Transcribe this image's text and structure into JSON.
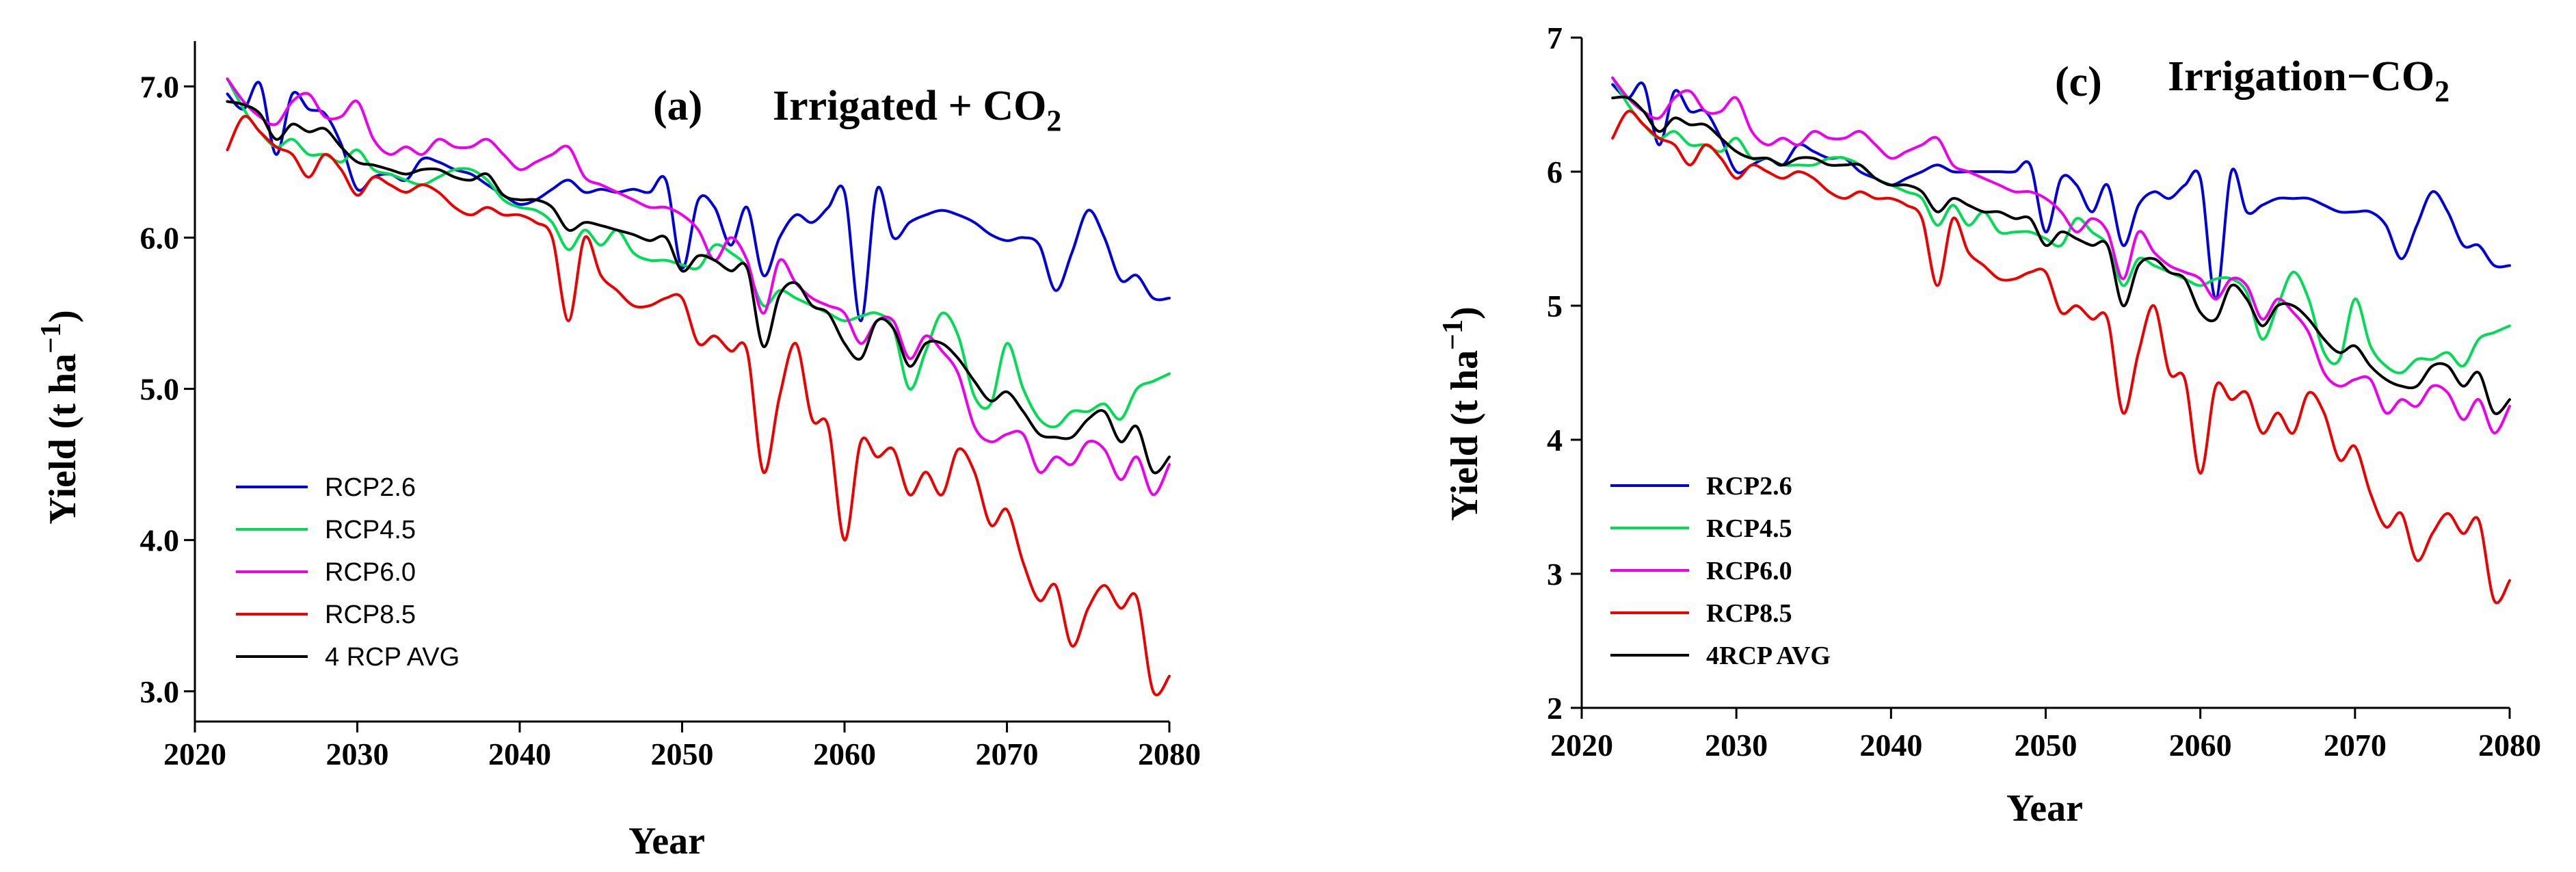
{
  "chart_data": [
    {
      "type": "line",
      "panel_label": "(a)",
      "title_main": "Irrigated + CO",
      "title_sub": "2",
      "xlabel": "Year",
      "ylabel_main": "Yield (t ha",
      "ylabel_sup": "−1",
      "ylabel_close": ")",
      "xlim": [
        2020,
        2080
      ],
      "ylim": [
        2.8,
        7.3
      ],
      "xticks": [
        2020,
        2030,
        2040,
        2050,
        2060,
        2070,
        2080
      ],
      "xtick_labels": [
        "2020",
        "2030",
        "2040",
        "2050",
        "2060",
        "2070",
        "2080"
      ],
      "yticks": [
        3,
        4,
        5,
        6,
        7
      ],
      "ytick_labels": [
        "3.0",
        "4.0",
        "5.0",
        "6.0",
        "7.0"
      ],
      "legend_position": "bottom-left",
      "x": [
        2022,
        2023,
        2024,
        2025,
        2026,
        2027,
        2028,
        2029,
        2030,
        2031,
        2032,
        2033,
        2034,
        2035,
        2036,
        2037,
        2038,
        2039,
        2040,
        2041,
        2042,
        2043,
        2044,
        2045,
        2046,
        2047,
        2048,
        2049,
        2050,
        2051,
        2052,
        2053,
        2054,
        2055,
        2056,
        2057,
        2058,
        2059,
        2060,
        2061,
        2062,
        2063,
        2064,
        2065,
        2066,
        2067,
        2068,
        2069,
        2070,
        2071,
        2072,
        2073,
        2074,
        2075,
        2076,
        2077,
        2078,
        2079,
        2080
      ],
      "series": [
        {
          "name": "RCP2.6",
          "color": "#0000dd",
          "values": [
            6.95,
            6.85,
            7.02,
            6.55,
            6.95,
            6.85,
            6.82,
            6.62,
            6.32,
            6.4,
            6.42,
            6.38,
            6.52,
            6.5,
            6.45,
            6.42,
            6.35,
            6.28,
            6.22,
            6.25,
            6.32,
            6.38,
            6.3,
            6.32,
            6.3,
            6.32,
            6.3,
            6.38,
            5.8,
            6.25,
            6.2,
            5.95,
            6.2,
            5.75,
            6.0,
            6.15,
            6.1,
            6.2,
            6.3,
            5.45,
            6.32,
            6.0,
            6.1,
            6.15,
            6.18,
            6.15,
            6.1,
            6.02,
            5.98,
            6.0,
            5.95,
            5.65,
            5.9,
            6.18,
            6.0,
            5.72,
            5.75,
            5.6,
            5.6
          ]
        },
        {
          "name": "RCP4.5",
          "color": "#00dd55",
          "values": [
            7.05,
            6.85,
            6.7,
            6.6,
            6.65,
            6.55,
            6.55,
            6.5,
            6.58,
            6.45,
            6.42,
            6.38,
            6.35,
            6.4,
            6.45,
            6.45,
            6.38,
            6.25,
            6.2,
            6.18,
            6.1,
            5.92,
            6.05,
            5.95,
            6.05,
            5.9,
            5.85,
            5.85,
            5.82,
            5.8,
            5.95,
            5.9,
            5.8,
            5.55,
            5.65,
            5.6,
            5.55,
            5.5,
            5.45,
            5.48,
            5.5,
            5.4,
            5.0,
            5.25,
            5.5,
            5.35,
            4.95,
            4.9,
            5.3,
            5.0,
            4.8,
            4.75,
            4.85,
            4.85,
            4.9,
            4.8,
            5.0,
            5.05,
            5.1
          ]
        },
        {
          "name": "RCP6.0",
          "color": "#ee00ee",
          "values": [
            7.05,
            6.9,
            6.8,
            6.75,
            6.9,
            6.95,
            6.8,
            6.8,
            6.9,
            6.65,
            6.55,
            6.6,
            6.55,
            6.65,
            6.6,
            6.6,
            6.65,
            6.55,
            6.45,
            6.5,
            6.55,
            6.6,
            6.4,
            6.35,
            6.3,
            6.25,
            6.2,
            6.2,
            6.15,
            6.05,
            5.85,
            6.0,
            5.85,
            5.5,
            5.85,
            5.7,
            5.6,
            5.55,
            5.5,
            5.3,
            5.45,
            5.45,
            5.2,
            5.35,
            5.25,
            5.1,
            4.75,
            4.65,
            4.7,
            4.7,
            4.45,
            4.55,
            4.5,
            4.65,
            4.6,
            4.4,
            4.55,
            4.3,
            4.5
          ]
        },
        {
          "name": "RCP8.5",
          "color": "#ee0000",
          "values": [
            6.58,
            6.8,
            6.7,
            6.6,
            6.55,
            6.4,
            6.55,
            6.45,
            6.28,
            6.4,
            6.35,
            6.3,
            6.35,
            6.3,
            6.2,
            6.15,
            6.2,
            6.15,
            6.15,
            6.1,
            6.0,
            5.45,
            6.0,
            5.75,
            5.65,
            5.55,
            5.55,
            5.6,
            5.6,
            5.3,
            5.35,
            5.25,
            5.25,
            4.45,
            4.95,
            5.3,
            4.8,
            4.75,
            4.0,
            4.65,
            4.55,
            4.6,
            4.3,
            4.45,
            4.3,
            4.6,
            4.45,
            4.1,
            4.2,
            3.85,
            3.6,
            3.7,
            3.3,
            3.55,
            3.7,
            3.55,
            3.62,
            3.0,
            3.1
          ]
        },
        {
          "name": "4 RCP AVG",
          "color": "#000000",
          "values": [
            6.9,
            6.88,
            6.82,
            6.65,
            6.75,
            6.7,
            6.72,
            6.6,
            6.5,
            6.48,
            6.45,
            6.42,
            6.45,
            6.45,
            6.4,
            6.38,
            6.42,
            6.28,
            6.25,
            6.25,
            6.2,
            6.05,
            6.1,
            6.08,
            6.05,
            6.02,
            5.98,
            6.0,
            5.78,
            5.88,
            5.85,
            5.78,
            5.8,
            5.28,
            5.62,
            5.7,
            5.55,
            5.5,
            5.3,
            5.2,
            5.45,
            5.4,
            5.15,
            5.3,
            5.3,
            5.2,
            5.05,
            4.92,
            4.98,
            4.85,
            4.7,
            4.68,
            4.68,
            4.8,
            4.85,
            4.65,
            4.75,
            4.45,
            4.55
          ]
        }
      ]
    },
    {
      "type": "line",
      "panel_label": "(c)",
      "title_main": "Irrigation−CO",
      "title_sub": "2",
      "xlabel": "Year",
      "ylabel_main": "Yield (t ha",
      "ylabel_sup": "−1",
      "ylabel_close": ")",
      "xlim": [
        2020,
        2080
      ],
      "ylim": [
        2,
        7
      ],
      "xticks": [
        2020,
        2030,
        2040,
        2050,
        2060,
        2070,
        2080
      ],
      "xtick_labels": [
        "2020",
        "2030",
        "2040",
        "2050",
        "2060",
        "2070",
        "2080"
      ],
      "yticks": [
        2,
        3,
        4,
        5,
        6,
        7
      ],
      "ytick_labels": [
        "2",
        "3",
        "4",
        "5",
        "6",
        "7"
      ],
      "legend_position": "bottom-left",
      "x": [
        2022,
        2023,
        2024,
        2025,
        2026,
        2027,
        2028,
        2029,
        2030,
        2031,
        2032,
        2033,
        2034,
        2035,
        2036,
        2037,
        2038,
        2039,
        2040,
        2041,
        2042,
        2043,
        2044,
        2045,
        2046,
        2047,
        2048,
        2049,
        2050,
        2051,
        2052,
        2053,
        2054,
        2055,
        2056,
        2057,
        2058,
        2059,
        2060,
        2061,
        2062,
        2063,
        2064,
        2065,
        2066,
        2067,
        2068,
        2069,
        2070,
        2071,
        2072,
        2073,
        2074,
        2075,
        2076,
        2077,
        2078,
        2079,
        2080
      ],
      "series": [
        {
          "name": "RCP2.6",
          "color": "#0000dd",
          "values": [
            6.65,
            6.55,
            6.65,
            6.2,
            6.6,
            6.45,
            6.45,
            6.25,
            6.0,
            6.05,
            6.1,
            6.05,
            6.2,
            6.15,
            6.1,
            6.1,
            6.0,
            5.95,
            5.9,
            5.95,
            6.0,
            6.05,
            6.0,
            6.0,
            6.0,
            6.0,
            6.0,
            6.05,
            5.55,
            5.95,
            5.9,
            5.7,
            5.9,
            5.45,
            5.75,
            5.85,
            5.8,
            5.9,
            5.95,
            5.05,
            6.0,
            5.7,
            5.75,
            5.8,
            5.8,
            5.8,
            5.75,
            5.7,
            5.7,
            5.7,
            5.6,
            5.35,
            5.6,
            5.85,
            5.7,
            5.45,
            5.45,
            5.3,
            5.3
          ]
        },
        {
          "name": "RCP4.5",
          "color": "#00dd55",
          "values": [
            6.7,
            6.5,
            6.35,
            6.25,
            6.3,
            6.2,
            6.2,
            6.15,
            6.25,
            6.1,
            6.1,
            6.05,
            6.05,
            6.05,
            6.1,
            6.1,
            6.05,
            5.95,
            5.9,
            5.85,
            5.8,
            5.6,
            5.75,
            5.6,
            5.7,
            5.55,
            5.55,
            5.55,
            5.5,
            5.45,
            5.65,
            5.55,
            5.45,
            5.15,
            5.35,
            5.3,
            5.25,
            5.2,
            5.15,
            5.2,
            5.2,
            5.1,
            4.75,
            5.0,
            5.25,
            5.05,
            4.65,
            4.6,
            5.05,
            4.7,
            4.55,
            4.5,
            4.6,
            4.6,
            4.65,
            4.55,
            4.75,
            4.8,
            4.85
          ]
        },
        {
          "name": "RCP6.0",
          "color": "#ee00ee",
          "values": [
            6.7,
            6.55,
            6.45,
            6.4,
            6.55,
            6.6,
            6.45,
            6.45,
            6.55,
            6.3,
            6.2,
            6.25,
            6.2,
            6.3,
            6.25,
            6.25,
            6.3,
            6.2,
            6.1,
            6.15,
            6.2,
            6.25,
            6.05,
            6.0,
            5.95,
            5.9,
            5.85,
            5.85,
            5.8,
            5.7,
            5.55,
            5.65,
            5.55,
            5.2,
            5.55,
            5.4,
            5.3,
            5.25,
            5.2,
            5.05,
            5.2,
            5.15,
            4.9,
            5.05,
            4.95,
            4.8,
            4.5,
            4.4,
            4.45,
            4.45,
            4.2,
            4.3,
            4.25,
            4.4,
            4.35,
            4.15,
            4.3,
            4.05,
            4.25
          ]
        },
        {
          "name": "RCP8.5",
          "color": "#ee0000",
          "values": [
            6.25,
            6.45,
            6.35,
            6.25,
            6.2,
            6.05,
            6.2,
            6.1,
            5.95,
            6.05,
            6.0,
            5.95,
            6.0,
            5.95,
            5.85,
            5.8,
            5.85,
            5.8,
            5.8,
            5.75,
            5.65,
            5.15,
            5.65,
            5.4,
            5.3,
            5.2,
            5.2,
            5.25,
            5.25,
            4.95,
            5.0,
            4.9,
            4.9,
            4.2,
            4.65,
            5.0,
            4.5,
            4.45,
            3.75,
            4.4,
            4.3,
            4.35,
            4.05,
            4.2,
            4.05,
            4.35,
            4.2,
            3.85,
            3.95,
            3.6,
            3.35,
            3.45,
            3.1,
            3.3,
            3.45,
            3.3,
            3.4,
            2.8,
            2.95
          ]
        },
        {
          "name": "4RCP AVG",
          "color": "#000000",
          "values": [
            6.55,
            6.55,
            6.45,
            6.3,
            6.4,
            6.35,
            6.35,
            6.25,
            6.15,
            6.1,
            6.1,
            6.05,
            6.1,
            6.1,
            6.05,
            6.05,
            6.05,
            5.95,
            5.9,
            5.9,
            5.85,
            5.7,
            5.8,
            5.75,
            5.7,
            5.7,
            5.65,
            5.65,
            5.45,
            5.55,
            5.5,
            5.45,
            5.45,
            5.0,
            5.3,
            5.35,
            5.25,
            5.2,
            4.95,
            4.9,
            5.15,
            5.05,
            4.85,
            5.0,
            5.0,
            4.9,
            4.75,
            4.65,
            4.7,
            4.55,
            4.45,
            4.4,
            4.4,
            4.55,
            4.55,
            4.4,
            4.5,
            4.2,
            4.3
          ]
        }
      ]
    }
  ]
}
